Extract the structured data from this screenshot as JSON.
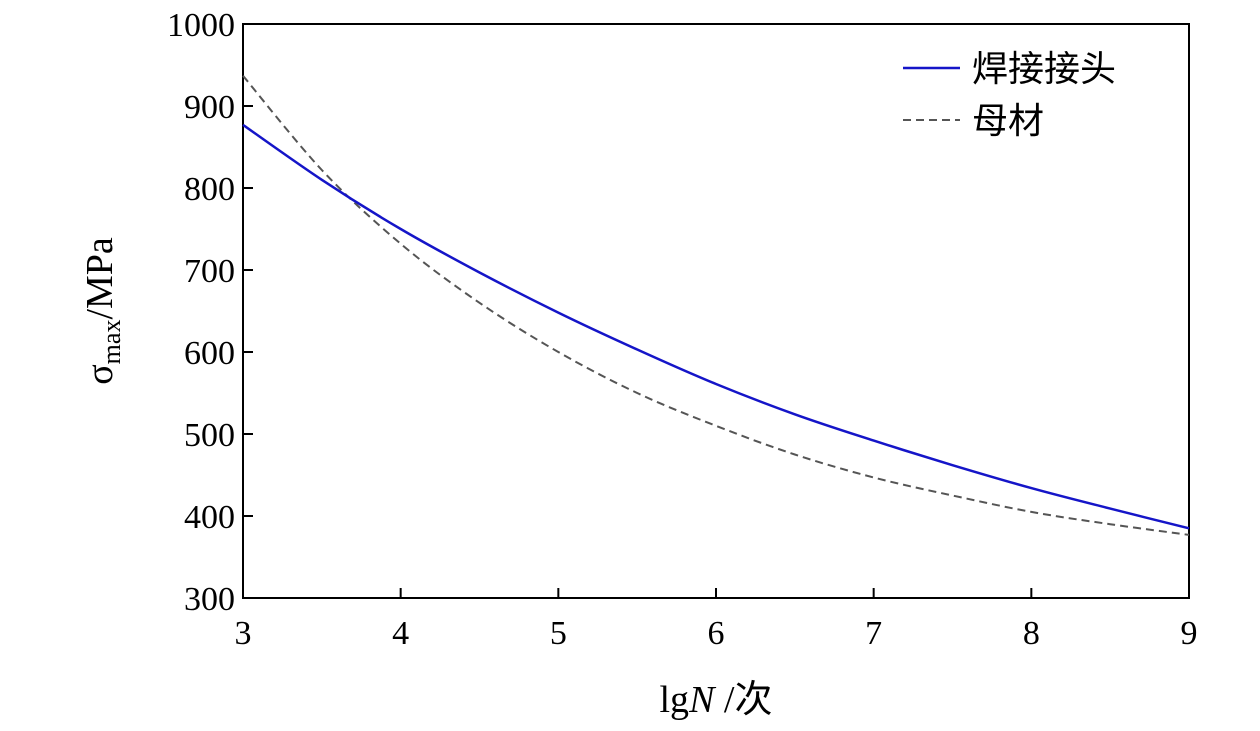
{
  "chart_data": {
    "type": "line",
    "xlabel": "lgN /次",
    "xlabel_parts": {
      "prefix": "lg",
      "var": "N",
      "suffix": " /次"
    },
    "ylabel": "σmax/MPa",
    "ylabel_parts": {
      "symbol": "σ",
      "subscript": "max",
      "unit": "/MPa"
    },
    "xlim": [
      3,
      9
    ],
    "ylim": [
      300,
      1000
    ],
    "xticks": [
      3,
      4,
      5,
      6,
      7,
      8,
      9
    ],
    "yticks": [
      300,
      400,
      500,
      600,
      700,
      800,
      900,
      1000
    ],
    "grid": false,
    "legend_position": "top-right",
    "series": [
      {
        "name": "焊接接头",
        "color": "#1515c8",
        "style": "solid",
        "x": [
          3,
          3.5,
          4,
          4.5,
          5,
          5.5,
          6,
          6.5,
          7,
          7.5,
          8,
          8.5,
          9
        ],
        "y": [
          877,
          810,
          750,
          697,
          648,
          603,
          561,
          524,
          492,
          462,
          434,
          409,
          385
        ]
      },
      {
        "name": "母材",
        "color": "#555555",
        "style": "dashed",
        "x": [
          3,
          3.5,
          4,
          4.5,
          5,
          5.5,
          6,
          6.5,
          7,
          7.5,
          8,
          8.5,
          9
        ],
        "y": [
          937,
          822,
          732,
          660,
          600,
          550,
          510,
          475,
          447,
          425,
          405,
          390,
          377
        ]
      }
    ]
  }
}
